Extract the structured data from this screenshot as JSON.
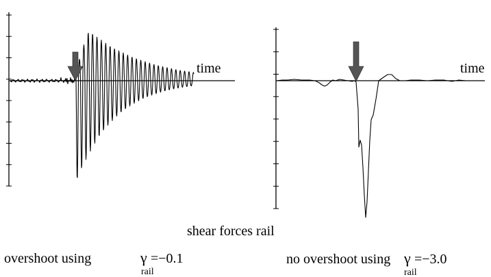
{
  "figure": {
    "caption": "shear forces rail"
  },
  "chart_data": [
    {
      "type": "line",
      "xlabel": "time",
      "ylabel": "",
      "caption_text": "overshoot using",
      "caption_symbol": "γ",
      "caption_subscript": "rail",
      "caption_value": "=−0.1",
      "marker": "down-arrow at force onset",
      "grid": false
    },
    {
      "type": "line",
      "xlabel": "time",
      "ylabel": "",
      "caption_text": "no overshoot using",
      "caption_symbol": "γ",
      "caption_subscript": "rail",
      "caption_value": "=−3.0",
      "marker": "down-arrow at force onset",
      "grid": false
    }
  ]
}
